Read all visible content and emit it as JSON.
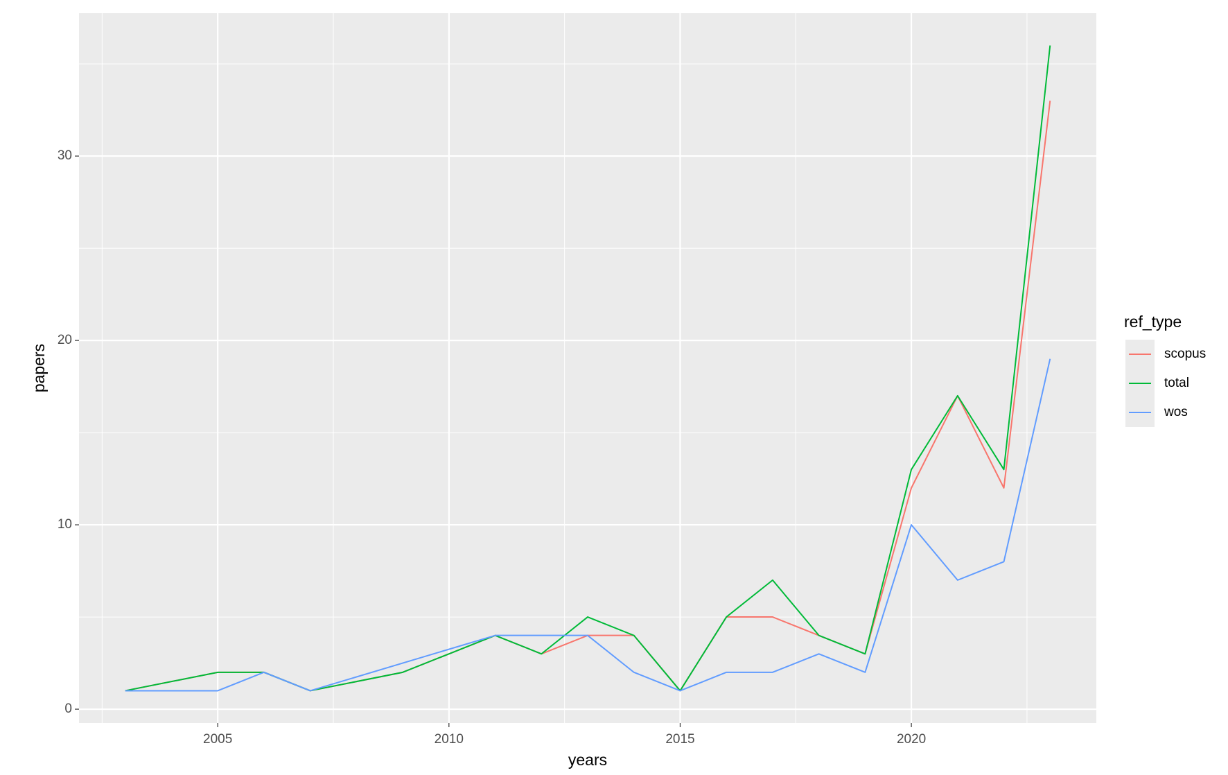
{
  "chart_data": {
    "type": "line",
    "x_label": "years",
    "y_label": "papers",
    "legend_title": "ref_type",
    "legend_position": "right",
    "grid": true,
    "minor_grid": true,
    "xlim": [
      2002,
      2024
    ],
    "ylim": [
      -0.75,
      37.75
    ],
    "xticks": [
      2005,
      2010,
      2015,
      2020
    ],
    "yticks": [
      0,
      10,
      20,
      30
    ],
    "series": [
      {
        "name": "scopus",
        "color": "#F8766D",
        "x": [
          2003,
          2005,
          2006,
          2007,
          2009,
          2010,
          2011,
          2012,
          2013,
          2014,
          2015,
          2016,
          2017,
          2018,
          2019,
          2020,
          2021,
          2022,
          2023
        ],
        "values": [
          1,
          2,
          2,
          1,
          2,
          3,
          4,
          3,
          4,
          4,
          1,
          5,
          5,
          4,
          3,
          12,
          17,
          12,
          33
        ]
      },
      {
        "name": "total",
        "color": "#00BA38",
        "x": [
          2003,
          2005,
          2006,
          2007,
          2009,
          2010,
          2011,
          2012,
          2013,
          2014,
          2015,
          2016,
          2017,
          2018,
          2019,
          2020,
          2021,
          2022,
          2023
        ],
        "values": [
          1,
          2,
          2,
          1,
          2,
          3,
          4,
          3,
          5,
          4,
          1,
          5,
          7,
          4,
          3,
          13,
          17,
          13,
          36
        ]
      },
      {
        "name": "wos",
        "color": "#619CFF",
        "x": [
          2003,
          2005,
          2006,
          2007,
          2011,
          2012,
          2013,
          2014,
          2015,
          2016,
          2017,
          2018,
          2019,
          2020,
          2021,
          2022,
          2023
        ],
        "values": [
          1,
          1,
          2,
          1,
          4,
          4,
          4,
          2,
          1,
          2,
          2,
          3,
          2,
          10,
          7,
          8,
          19
        ]
      }
    ]
  }
}
